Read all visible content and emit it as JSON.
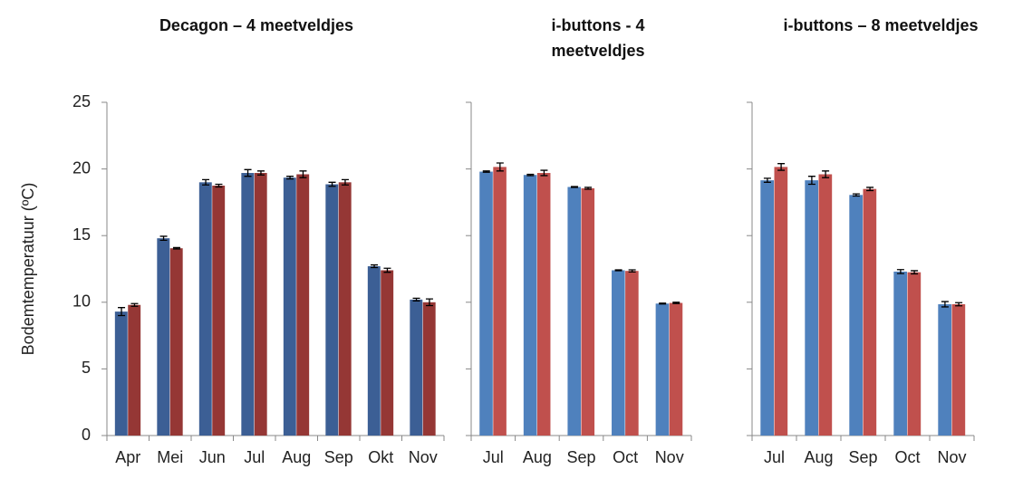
{
  "chart_data": [
    {
      "type": "bar",
      "title": "Decagon – 4 meetveldjes",
      "ylabel": "Bodemtemperatuur (ºC)",
      "categories": [
        "Apr",
        "Mei",
        "Jun",
        "Jul",
        "Aug",
        "Sep",
        "Okt",
        "Nov"
      ],
      "series": [
        {
          "color": "#3c5f95",
          "values": [
            9.3,
            14.8,
            19.0,
            19.7,
            19.35,
            18.85,
            12.7,
            10.2
          ],
          "errors": [
            0.3,
            0.15,
            0.2,
            0.25,
            0.1,
            0.15,
            0.1,
            0.1
          ]
        },
        {
          "color": "#953735",
          "values": [
            9.8,
            14.05,
            18.75,
            19.7,
            19.6,
            19.0,
            12.4,
            10.0
          ],
          "errors": [
            0.1,
            0.05,
            0.1,
            0.15,
            0.25,
            0.2,
            0.15,
            0.25
          ]
        }
      ],
      "ylim": [
        0,
        25
      ],
      "yticks": [
        0,
        5,
        10,
        15,
        20,
        25
      ],
      "show_ytick_labels": true
    },
    {
      "type": "bar",
      "title": "i-buttons -  4 meetveldjes",
      "categories": [
        "Jul",
        "Aug",
        "Sep",
        "Oct",
        "Nov"
      ],
      "series": [
        {
          "color": "#4f81bd",
          "values": [
            19.8,
            19.55,
            18.65,
            12.4,
            9.9
          ],
          "errors": [
            0.05,
            0.05,
            0.03,
            0.03,
            0.03
          ]
        },
        {
          "color": "#c0504d",
          "values": [
            20.15,
            19.7,
            18.55,
            12.35,
            9.95
          ],
          "errors": [
            0.3,
            0.2,
            0.07,
            0.08,
            0.05
          ]
        }
      ],
      "ylim": [
        0,
        25
      ],
      "yticks": [
        0,
        5,
        10,
        15,
        20,
        25
      ],
      "show_ytick_labels": false
    },
    {
      "type": "bar",
      "title": "i-buttons – 8 meetveldjes",
      "categories": [
        "Jul",
        "Aug",
        "Sep",
        "Oct",
        "Nov"
      ],
      "series": [
        {
          "color": "#4f81bd",
          "values": [
            19.15,
            19.15,
            18.05,
            12.3,
            9.85
          ],
          "errors": [
            0.15,
            0.3,
            0.08,
            0.15,
            0.2
          ]
        },
        {
          "color": "#c0504d",
          "values": [
            20.15,
            19.6,
            18.5,
            12.25,
            9.85
          ],
          "errors": [
            0.25,
            0.25,
            0.12,
            0.12,
            0.12
          ]
        }
      ],
      "ylim": [
        0,
        25
      ],
      "yticks": [
        0,
        5,
        10,
        15,
        20,
        25
      ],
      "show_ytick_labels": false
    }
  ]
}
